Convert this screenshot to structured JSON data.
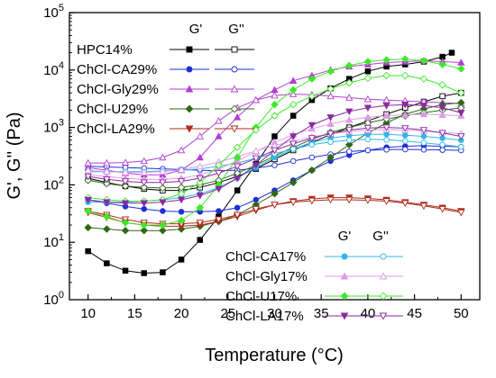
{
  "chart_data": {
    "type": "line",
    "xlabel": "Temperature (°C)",
    "ylabel": "G', G'' (Pa)",
    "xlim": [
      8,
      52
    ],
    "ylim": [
      1,
      100000
    ],
    "y_scale": "log",
    "grid": false,
    "x_ticks": [
      10,
      15,
      20,
      25,
      30,
      35,
      40,
      45,
      50
    ],
    "y_ticks": [
      1,
      10,
      100,
      1000,
      10000,
      100000
    ],
    "y_tick_labels": [
      "10^0",
      "10^1",
      "10^2",
      "10^3",
      "10^4",
      "10^5"
    ],
    "legend_headers": {
      "g1": "G'",
      "g2": "G''"
    },
    "legends": [
      {
        "placement": "top-left",
        "entries": [
          {
            "label": "HPC14%",
            "color": "#000000",
            "marker_g1": "square-filled",
            "marker_g2": "square-open"
          },
          {
            "label": "ChCl-CA29%",
            "color": "#1f2fd6",
            "marker_g1": "circle-filled",
            "marker_g2": "circle-open"
          },
          {
            "label": "ChCl-Gly29%",
            "color": "#b23fd0",
            "marker_g1": "triangle-filled",
            "marker_g2": "triangle-open"
          },
          {
            "label": "ChCl-U29%",
            "color": "#2e6a16",
            "marker_g1": "diamond-filled",
            "marker_g2": "diamond-open"
          },
          {
            "label": "ChCl-LA29%",
            "color": "#b22a1a",
            "marker_g1": "triangle-down-filled",
            "marker_g2": "triangle-down-open"
          }
        ]
      },
      {
        "placement": "bottom-right",
        "entries": [
          {
            "label": "ChCl-CA17%",
            "color": "#33b5ea",
            "marker_g1": "circle-filled",
            "marker_g2": "circle-open"
          },
          {
            "label": "ChCl-Gly17%",
            "color": "#e09ae8",
            "marker_g1": "triangle-filled",
            "marker_g2": "triangle-open"
          },
          {
            "label": "ChCl-U17%",
            "color": "#3fe82a",
            "marker_g1": "diamond-filled",
            "marker_g2": "diamond-open"
          },
          {
            "label": "ChCl-LA17%",
            "color": "#8a2a9e",
            "marker_g1": "triangle-down-filled",
            "marker_g2": "triangle-down-open"
          }
        ]
      }
    ],
    "series": [
      {
        "name": "HPC14%",
        "modulus": "G'",
        "color": "#000000",
        "marker": "square",
        "filled": true,
        "x": [
          10,
          12,
          14,
          16,
          18,
          20,
          22,
          24,
          26,
          28,
          30,
          32,
          34,
          36,
          38,
          40,
          42,
          44,
          46,
          48,
          49
        ],
        "y": [
          7,
          4.3,
          3.2,
          2.9,
          3.0,
          5,
          11,
          28,
          80,
          230,
          700,
          1600,
          3000,
          4800,
          7000,
          9500,
          11500,
          12500,
          14000,
          17000,
          20000
        ]
      },
      {
        "name": "HPC14%",
        "modulus": "G''",
        "color": "#000000",
        "marker": "square",
        "filled": false,
        "x": [
          10,
          12,
          14,
          16,
          18,
          20,
          22,
          24,
          26,
          28,
          30,
          32,
          34,
          36,
          38,
          40,
          42,
          44,
          46,
          48,
          50
        ],
        "y": [
          130,
          110,
          95,
          85,
          80,
          80,
          90,
          110,
          140,
          190,
          280,
          400,
          550,
          750,
          1000,
          1300,
          1700,
          2200,
          2800,
          3500,
          4000
        ]
      },
      {
        "name": "ChCl-CA29%",
        "modulus": "G'",
        "color": "#1f2fd6",
        "marker": "circle",
        "filled": true,
        "x": [
          10,
          12,
          14,
          16,
          18,
          20,
          22,
          24,
          26,
          28,
          30,
          32,
          34,
          36,
          38,
          40,
          42,
          44,
          46,
          48,
          50
        ],
        "y": [
          55,
          48,
          42,
          38,
          35,
          34,
          34,
          35,
          40,
          55,
          80,
          120,
          180,
          260,
          330,
          400,
          450,
          470,
          480,
          470,
          460
        ]
      },
      {
        "name": "ChCl-CA29%",
        "modulus": "G''",
        "color": "#1f2fd6",
        "marker": "circle",
        "filled": false,
        "x": [
          10,
          12,
          14,
          16,
          18,
          20,
          22,
          24,
          26,
          28,
          30,
          32,
          34,
          36,
          38,
          40,
          42,
          44,
          46,
          48,
          50
        ],
        "y": [
          210,
          205,
          200,
          195,
          190,
          185,
          180,
          175,
          180,
          195,
          220,
          260,
          300,
          340,
          380,
          400,
          410,
          415,
          410,
          405,
          400
        ]
      },
      {
        "name": "ChCl-Gly29%",
        "modulus": "G'",
        "color": "#b23fd0",
        "marker": "triangle",
        "filled": true,
        "x": [
          10,
          12,
          14,
          16,
          18,
          20,
          22,
          24,
          26,
          28,
          30,
          32,
          34,
          36,
          38,
          40,
          42,
          44,
          46,
          48,
          50
        ],
        "y": [
          200,
          180,
          160,
          150,
          150,
          180,
          300,
          700,
          1500,
          3000,
          4500,
          6500,
          8000,
          10000,
          11500,
          12500,
          13500,
          14000,
          14500,
          14000,
          13500
        ]
      },
      {
        "name": "ChCl-Gly29%",
        "modulus": "G''",
        "color": "#b23fd0",
        "marker": "triangle",
        "filled": false,
        "x": [
          10,
          12,
          14,
          16,
          18,
          20,
          22,
          24,
          26,
          28,
          30,
          32,
          34,
          36,
          38,
          40,
          42,
          44,
          46,
          48,
          50
        ],
        "y": [
          240,
          240,
          245,
          260,
          300,
          400,
          700,
          1300,
          2200,
          3000,
          3600,
          3800,
          3700,
          3500,
          3300,
          3100,
          3000,
          2900,
          2800,
          2700,
          2600
        ]
      },
      {
        "name": "ChCl-U29%",
        "modulus": "G'",
        "color": "#2e6a16",
        "marker": "diamond",
        "filled": true,
        "x": [
          10,
          12,
          14,
          16,
          18,
          20,
          22,
          24,
          26,
          28,
          30,
          32,
          34,
          36,
          38,
          40,
          42,
          44,
          46,
          48,
          50
        ],
        "y": [
          18,
          17,
          16,
          16,
          16,
          17,
          19,
          23,
          30,
          45,
          70,
          110,
          180,
          300,
          500,
          800,
          1200,
          1700,
          2100,
          2500,
          2700
        ]
      },
      {
        "name": "ChCl-U29%",
        "modulus": "G''",
        "color": "#2e6a16",
        "marker": "diamond",
        "filled": false,
        "x": [
          10,
          12,
          14,
          16,
          18,
          20,
          22,
          24,
          26,
          28,
          30,
          32,
          34,
          36,
          38,
          40,
          42,
          44,
          46,
          48,
          50
        ],
        "y": [
          120,
          105,
          95,
          90,
          88,
          90,
          100,
          120,
          160,
          220,
          320,
          450,
          620,
          820,
          1000,
          1200,
          1400,
          1600,
          1800,
          2000,
          2200
        ]
      },
      {
        "name": "ChCl-LA29%",
        "modulus": "G'",
        "color": "#b22a1a",
        "marker": "triangle-down",
        "filled": true,
        "x": [
          10,
          12,
          14,
          16,
          18,
          20,
          22,
          24,
          26,
          28,
          30,
          32,
          34,
          36,
          38,
          40,
          42,
          44,
          46,
          48,
          50
        ],
        "y": [
          33,
          27,
          22,
          20,
          19,
          19,
          20,
          23,
          28,
          36,
          45,
          52,
          57,
          60,
          60,
          58,
          55,
          50,
          45,
          40,
          35
        ]
      },
      {
        "name": "ChCl-LA29%",
        "modulus": "G''",
        "color": "#b22a1a",
        "marker": "triangle-down",
        "filled": false,
        "x": [
          10,
          12,
          14,
          16,
          18,
          20,
          22,
          24,
          26,
          28,
          30,
          32,
          34,
          36,
          38,
          40,
          42,
          44,
          46,
          48,
          50
        ],
        "y": [
          35,
          30,
          25,
          22,
          21,
          21,
          22,
          25,
          30,
          38,
          45,
          50,
          53,
          55,
          55,
          54,
          52,
          48,
          43,
          38,
          33
        ]
      },
      {
        "name": "ChCl-CA17%",
        "modulus": "G'",
        "color": "#33b5ea",
        "marker": "circle",
        "filled": true,
        "x": [
          10,
          12,
          14,
          16,
          18,
          20,
          22,
          24,
          26,
          28,
          30,
          32,
          34,
          36,
          38,
          40,
          42,
          44,
          46,
          48,
          50
        ],
        "y": [
          50,
          50,
          50,
          52,
          55,
          60,
          70,
          90,
          130,
          200,
          300,
          420,
          550,
          650,
          720,
          760,
          760,
          730,
          700,
          650,
          600
        ]
      },
      {
        "name": "ChCl-CA17%",
        "modulus": "G''",
        "color": "#33b5ea",
        "marker": "circle",
        "filled": false,
        "x": [
          10,
          12,
          14,
          16,
          18,
          20,
          22,
          24,
          26,
          28,
          30,
          32,
          34,
          36,
          38,
          40,
          42,
          44,
          46,
          48,
          50
        ],
        "y": [
          170,
          170,
          170,
          170,
          175,
          180,
          190,
          210,
          240,
          290,
          350,
          420,
          500,
          560,
          600,
          620,
          610,
          580,
          540,
          500,
          460
        ]
      },
      {
        "name": "ChCl-Gly17%",
        "modulus": "G'",
        "color": "#e09ae8",
        "marker": "triangle",
        "filled": true,
        "x": [
          10,
          12,
          14,
          16,
          18,
          20,
          22,
          24,
          26,
          28,
          30,
          32,
          34,
          36,
          38,
          40,
          42,
          44,
          46,
          48,
          50
        ],
        "y": [
          150,
          140,
          130,
          125,
          125,
          130,
          150,
          190,
          260,
          380,
          550,
          750,
          950,
          1150,
          1350,
          1500,
          1600,
          1650,
          1700,
          1650,
          1600
        ]
      },
      {
        "name": "ChCl-Gly17%",
        "modulus": "G''",
        "color": "#e09ae8",
        "marker": "triangle",
        "filled": false,
        "x": [
          10,
          12,
          14,
          16,
          18,
          20,
          22,
          24,
          26,
          28,
          30,
          32,
          34,
          36,
          38,
          40,
          42,
          44,
          46,
          48,
          50
        ],
        "y": [
          180,
          170,
          165,
          165,
          170,
          185,
          210,
          250,
          310,
          390,
          480,
          580,
          680,
          780,
          850,
          900,
          920,
          900,
          870,
          820,
          780
        ]
      },
      {
        "name": "ChCl-U17%",
        "modulus": "G'",
        "color": "#3fe82a",
        "marker": "diamond",
        "filled": true,
        "x": [
          10,
          12,
          14,
          16,
          18,
          20,
          22,
          24,
          26,
          28,
          30,
          32,
          34,
          36,
          38,
          40,
          42,
          44,
          46,
          48,
          50
        ],
        "y": [
          35,
          28,
          22,
          20,
          20,
          24,
          40,
          100,
          300,
          1000,
          2500,
          4500,
          7000,
          9500,
          12000,
          14000,
          15000,
          15500,
          14500,
          12500,
          10500
        ]
      },
      {
        "name": "ChCl-U17%",
        "modulus": "G''",
        "color": "#3fe82a",
        "marker": "diamond",
        "filled": false,
        "x": [
          10,
          12,
          14,
          16,
          18,
          20,
          22,
          24,
          26,
          28,
          30,
          32,
          34,
          36,
          38,
          40,
          42,
          44,
          46,
          48,
          50
        ],
        "y": [
          60,
          55,
          52,
          52,
          55,
          70,
          110,
          220,
          450,
          900,
          1600,
          2500,
          3500,
          4700,
          6000,
          7200,
          8000,
          8000,
          7000,
          5500,
          4000
        ]
      },
      {
        "name": "ChCl-LA17%",
        "modulus": "G'",
        "color": "#8a2a9e",
        "marker": "triangle-down",
        "filled": true,
        "x": [
          10,
          12,
          14,
          16,
          18,
          20,
          22,
          24,
          26,
          28,
          30,
          32,
          34,
          36,
          38,
          40,
          42,
          44,
          46,
          48,
          50
        ],
        "y": [
          55,
          50,
          48,
          48,
          50,
          55,
          65,
          85,
          130,
          220,
          400,
          700,
          1100,
          1500,
          1900,
          2200,
          2400,
          2500,
          2400,
          2200,
          1800
        ]
      },
      {
        "name": "ChCl-LA17%",
        "modulus": "G''",
        "color": "#8a2a9e",
        "marker": "triangle-down",
        "filled": false,
        "x": [
          10,
          12,
          14,
          16,
          18,
          20,
          22,
          24,
          26,
          28,
          30,
          32,
          34,
          36,
          38,
          40,
          42,
          44,
          46,
          48,
          50
        ],
        "y": [
          140,
          125,
          115,
          110,
          110,
          115,
          130,
          160,
          210,
          290,
          400,
          520,
          650,
          780,
          900,
          980,
          1000,
          970,
          900,
          800,
          700
        ]
      }
    ]
  }
}
